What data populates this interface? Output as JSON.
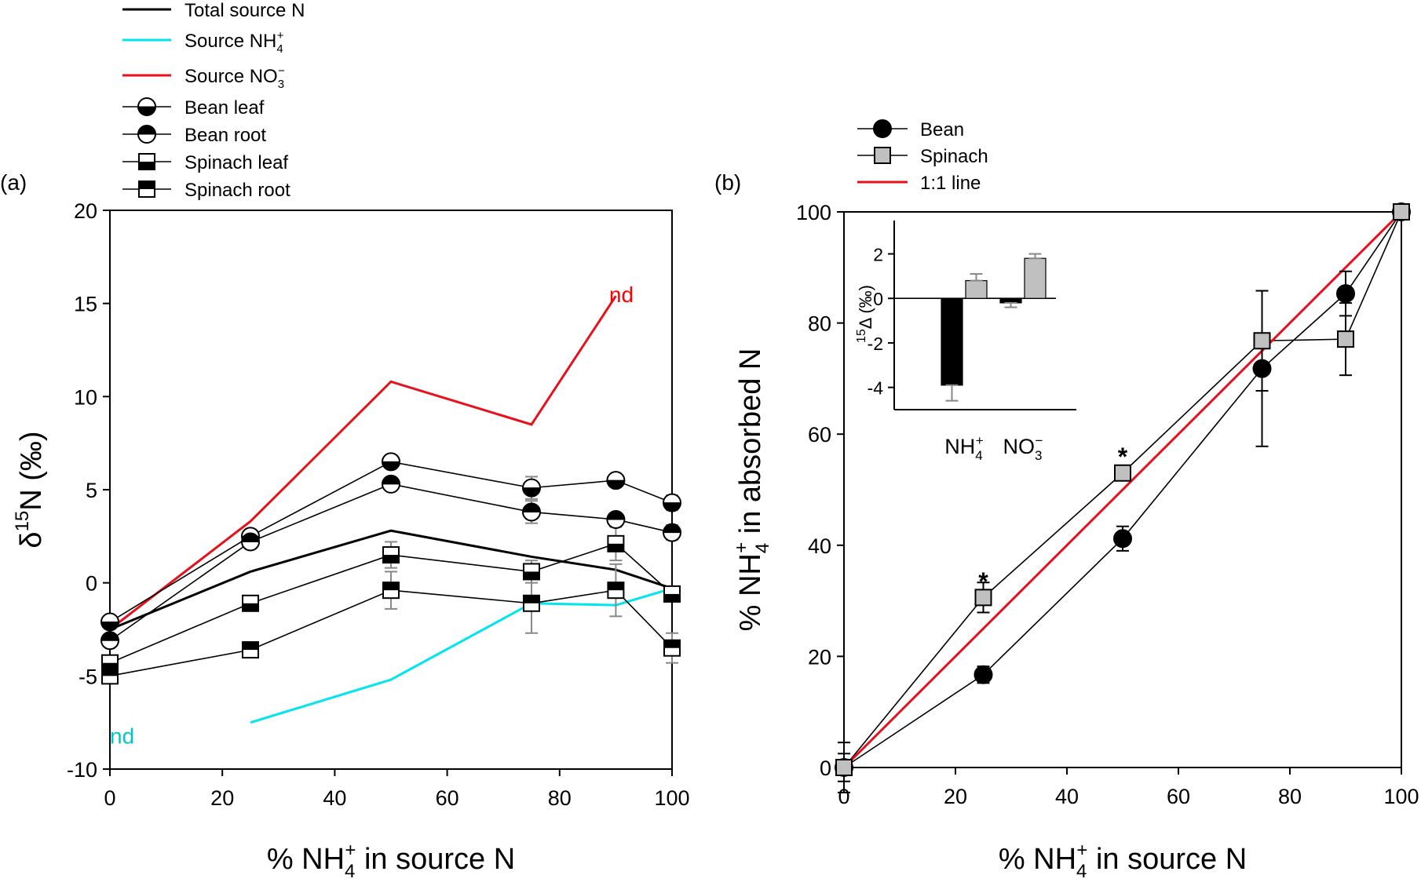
{
  "chart_data": [
    {
      "panel_label": "(a)",
      "type": "line",
      "xlabel": {
        "pre": "% NH",
        "sub": "4",
        "sup": "+",
        "post": " in source N"
      },
      "ylabel": {
        "pre": "δ",
        "sup": "15",
        "post": "N (‰)"
      },
      "xlim": [
        0,
        100
      ],
      "ylim": [
        -10,
        20
      ],
      "x_ticks": [
        "0",
        "20",
        "40",
        "60",
        "80",
        "100"
      ],
      "y_ticks": [
        "-10",
        "-5",
        "0",
        "5",
        "10",
        "15",
        "20"
      ],
      "annotations": [
        {
          "text": "nd",
          "color": "#ff0000",
          "x": 93,
          "y": 15.5
        },
        {
          "text": "nd",
          "color": "#00c8c8",
          "x": 0,
          "y": -8.2
        }
      ],
      "legend": {
        "placement": "above-panel",
        "entries": [
          {
            "label": "Total source N",
            "sub": "",
            "sup": ""
          },
          {
            "label": "Source NH",
            "sub": "4",
            "sup": "+"
          },
          {
            "label": "Source NO",
            "sub": "3",
            "sup": "−"
          },
          {
            "label": "Bean leaf",
            "sub": "",
            "sup": ""
          },
          {
            "label": "Bean root",
            "sub": "",
            "sup": ""
          },
          {
            "label": "Spinach leaf",
            "sub": "",
            "sup": ""
          },
          {
            "label": "Spinach root",
            "sub": "",
            "sup": ""
          }
        ]
      },
      "series": [
        {
          "name": "Total source N",
          "style": "line",
          "color": "#000000",
          "width": 3,
          "x": [
            0,
            25,
            50,
            75,
            90,
            100
          ],
          "y": [
            -2.5,
            0.6,
            2.8,
            1.4,
            0.7,
            -0.3
          ]
        },
        {
          "name": "Source NH4+",
          "style": "line",
          "color": "#00e5ee",
          "width": 3,
          "x": [
            25,
            50,
            75,
            90,
            100
          ],
          "y": [
            -7.5,
            -5.2,
            -1.1,
            -1.2,
            -0.3
          ]
        },
        {
          "name": "Source NO3−",
          "style": "line",
          "color": "#e8111b",
          "width": 3,
          "x": [
            0,
            25,
            50,
            75,
            90
          ],
          "y": [
            -2.5,
            3.3,
            10.8,
            8.5,
            15.4
          ]
        },
        {
          "name": "Bean leaf",
          "style": "marker",
          "marker": "circle-bottom-half",
          "color": "#000000",
          "x": [
            0,
            25,
            50,
            75,
            90,
            100
          ],
          "y": [
            -2.1,
            2.5,
            6.5,
            5.1,
            5.5,
            4.3
          ],
          "err": [
            0.2,
            0.3,
            0.3,
            0.6,
            0.3,
            0.4
          ]
        },
        {
          "name": "Bean root",
          "style": "marker",
          "marker": "circle-top-half",
          "color": "#000000",
          "x": [
            0,
            25,
            50,
            75,
            90,
            100
          ],
          "y": [
            -3.1,
            2.2,
            5.3,
            3.8,
            3.4,
            2.7
          ],
          "err": [
            0.2,
            0.3,
            0.3,
            0.6,
            0.3,
            0.4
          ]
        },
        {
          "name": "Spinach leaf",
          "style": "marker",
          "marker": "square-bottom-half",
          "color": "#000000",
          "x": [
            0,
            25,
            50,
            75,
            90,
            100
          ],
          "y": [
            -4.3,
            -1.1,
            1.5,
            0.6,
            2.1,
            -0.6
          ],
          "err": [
            0.3,
            0.3,
            0.7,
            0.6,
            0.9,
            0.4
          ]
        },
        {
          "name": "Spinach root",
          "style": "marker",
          "marker": "square-top-half",
          "color": "#000000",
          "x": [
            0,
            25,
            50,
            75,
            90,
            100
          ],
          "y": [
            -5.0,
            -3.6,
            -0.4,
            -1.1,
            -0.4,
            -3.5
          ],
          "err": [
            0.3,
            0.3,
            1.0,
            1.6,
            1.4,
            0.8
          ]
        }
      ]
    },
    {
      "panel_label": "(b)",
      "type": "line",
      "xlabel": {
        "pre": "% NH",
        "sub": "4",
        "sup": "+",
        "post": " in source N"
      },
      "ylabel": {
        "pre": "% NH",
        "sub": "4",
        "sup": "+",
        "post": " in absorbed N"
      },
      "xlim": [
        0,
        100
      ],
      "ylim": [
        0,
        100
      ],
      "x_ticks": [
        "0",
        "20",
        "40",
        "60",
        "80",
        "100"
      ],
      "y_ticks": [
        "0",
        "20",
        "40",
        "60",
        "80",
        "100"
      ],
      "annotations": [
        {
          "text": "*",
          "x": 25,
          "y": 35
        },
        {
          "text": "*",
          "x": 50,
          "y": 57.5
        }
      ],
      "legend": {
        "placement": "above-panel",
        "entries": [
          {
            "label": "Bean"
          },
          {
            "label": "Spinach"
          },
          {
            "label": "1:1 line"
          }
        ]
      },
      "series": [
        {
          "name": "Bean",
          "style": "line-marker",
          "marker": "circle",
          "color": "#000000",
          "fill": "#000000",
          "x": [
            0,
            25,
            50,
            75,
            90,
            100
          ],
          "y": [
            0,
            16.7,
            41.2,
            71.8,
            85.3,
            100
          ],
          "err": [
            4.5,
            1.5,
            2.2,
            14,
            4.0,
            0
          ]
        },
        {
          "name": "Spinach",
          "style": "line-marker",
          "marker": "square",
          "color": "#000000",
          "fill": "#c0c0c0",
          "x": [
            0,
            25,
            50,
            75,
            90,
            100
          ],
          "y": [
            0,
            30.6,
            53.0,
            76.8,
            77.1,
            100
          ],
          "err": [
            2.5,
            2.7,
            1.0,
            9.0,
            6.5,
            0
          ]
        },
        {
          "name": "1:1 line",
          "style": "line",
          "color": "#e8111b",
          "width": 3,
          "x": [
            0,
            100
          ],
          "y": [
            0,
            100
          ]
        }
      ],
      "inset": {
        "type": "bar",
        "ylabel": {
          "sup": "15",
          "pre": "Δ (‰)"
        },
        "ylim": [
          -5,
          3.5
        ],
        "y_ticks": [
          "-4",
          "-2",
          "0",
          "2"
        ],
        "categories": [
          {
            "label": "NH",
            "sub": "4",
            "sup": "+"
          },
          {
            "label": "NO",
            "sub": "3",
            "sup": "−"
          }
        ],
        "series": [
          {
            "name": "Bean",
            "color": "#000000",
            "values": [
              -3.9,
              -0.2
            ],
            "err": [
              0.7,
              0.2
            ]
          },
          {
            "name": "Spinach",
            "color": "#c0c0c0",
            "values": [
              0.8,
              1.8
            ],
            "err": [
              0.3,
              0.2
            ]
          }
        ]
      }
    }
  ]
}
